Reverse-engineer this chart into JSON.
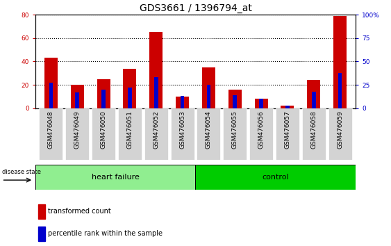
{
  "title": "GDS3661 / 1396794_at",
  "samples": [
    "GSM476048",
    "GSM476049",
    "GSM476050",
    "GSM476051",
    "GSM476052",
    "GSM476053",
    "GSM476054",
    "GSM476055",
    "GSM476056",
    "GSM476057",
    "GSM476058",
    "GSM476059"
  ],
  "red_values": [
    43,
    20,
    25,
    34,
    65,
    10,
    35,
    16,
    8,
    2,
    24,
    79
  ],
  "blue_values_pct": [
    27,
    17,
    20,
    22,
    33,
    13,
    25,
    14,
    10,
    3,
    18,
    38
  ],
  "left_ylim": [
    0,
    80
  ],
  "right_ylim": [
    0,
    100
  ],
  "left_yticks": [
    0,
    20,
    40,
    60,
    80
  ],
  "right_yticks": [
    0,
    25,
    50,
    75,
    100
  ],
  "right_yticklabels": [
    "0",
    "25",
    "50",
    "75",
    "100%"
  ],
  "left_yticklabels": [
    "0",
    "20",
    "40",
    "60",
    "80"
  ],
  "heart_failure_count": 6,
  "control_count": 6,
  "heart_failure_color": "#90EE90",
  "control_color": "#00CC00",
  "red_color": "#CC0000",
  "blue_color": "#0000CC",
  "group_label_hf": "heart failure",
  "group_label_ctrl": "control",
  "disease_state_label": "disease state",
  "legend_red": "transformed count",
  "legend_blue": "percentile rank within the sample",
  "bg_color": "#FFFFFF",
  "plot_bg": "#FFFFFF",
  "tick_bg": "#D3D3D3",
  "dotted_line_color": "#000000",
  "title_fontsize": 10,
  "tick_fontsize": 6.5,
  "label_fontsize": 8
}
